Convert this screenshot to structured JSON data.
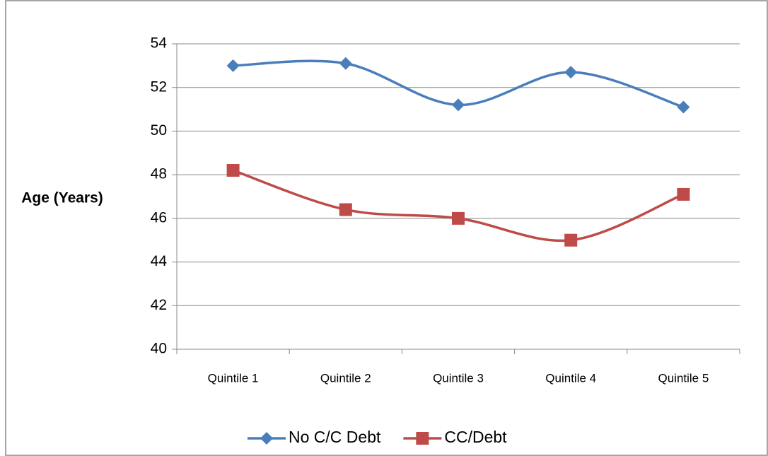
{
  "chart_data": {
    "type": "line",
    "y_label": "Age (Years)",
    "categories": [
      "Quintile 1",
      "Quintile 2",
      "Quintile 3",
      "Quintile 4",
      "Quintile 5"
    ],
    "series": [
      {
        "name": "No C/C Debt",
        "color": "#4a7ebb",
        "marker": "diamond",
        "values": [
          53.0,
          53.1,
          51.2,
          52.7,
          51.1
        ]
      },
      {
        "name": "CC/Debt",
        "color": "#be4b48",
        "marker": "square",
        "values": [
          48.2,
          46.4,
          46.0,
          45.0,
          47.1
        ]
      }
    ],
    "ylim": [
      40,
      54
    ],
    "yticks": [
      40,
      42,
      44,
      46,
      48,
      50,
      52,
      54
    ],
    "grid": true,
    "smooth": true,
    "legend": "bottom"
  }
}
